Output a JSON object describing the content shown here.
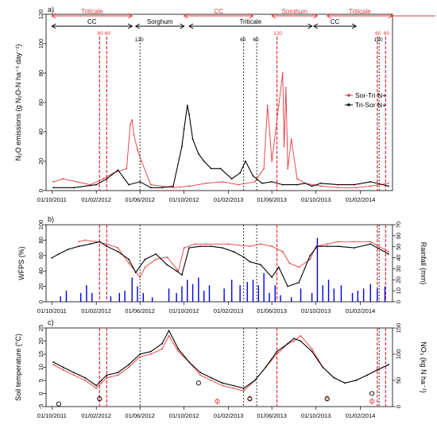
{
  "colors": {
    "sor_tri": "#e8373a",
    "tri_sor": "#000000",
    "rain": "#0000ee",
    "axis": "#000000"
  },
  "x_axis": {
    "ticks": [
      "01/10/2011",
      "01/02/2012",
      "01/06/2012",
      "01/10/2012",
      "01/02/2013",
      "01/06/2013",
      "01/10/2013",
      "01/02/2014"
    ],
    "range": [
      "2011-09-15",
      "2014-05-01"
    ]
  },
  "crops_sor_tri": [
    {
      "label": "Triticale",
      "start": "2011-10-01",
      "end": "2012-05-10"
    },
    {
      "label": "CC",
      "start": "2012-10-01",
      "end": "2013-04-10"
    },
    {
      "label": "Sorghum",
      "start": "2013-06-01",
      "end": "2013-10-05"
    },
    {
      "label": "Triticale",
      "start": "2013-11-01",
      "end": "2014-05-01"
    }
  ],
  "crops_tri_sor": [
    {
      "label": "CC",
      "start": "2011-10-01",
      "end": "2012-05-10"
    },
    {
      "label": "Sorghum",
      "start": "2012-05-20",
      "end": "2012-10-01"
    },
    {
      "label": "Triticale",
      "start": "2012-10-15",
      "end": "2013-09-20"
    },
    {
      "label": "CC",
      "start": "2013-09-25",
      "end": "2014-01-20"
    }
  ],
  "fert_sor_tri": [
    {
      "label": "60",
      "date": "2012-02-10"
    },
    {
      "label": "60",
      "date": "2012-03-01"
    },
    {
      "label": "120",
      "date": "2013-06-15"
    },
    {
      "label": "60",
      "date": "2014-03-20"
    },
    {
      "label": "60",
      "date": "2014-04-12"
    }
  ],
  "fert_tri_sor": [
    {
      "label": "120",
      "date": "2012-06-01"
    },
    {
      "label": "60",
      "date": "2013-03-15"
    },
    {
      "label": "60",
      "date": "2013-04-20"
    },
    {
      "label": "120",
      "date": "2014-03-25"
    }
  ],
  "chart_data": [
    {
      "type": "line",
      "panel": "a)",
      "ylabel": "N₂O emissions (g N₂O-N ha⁻¹ day⁻¹)",
      "ylim": [
        0,
        120
      ],
      "yticks": [
        0,
        20,
        40,
        60,
        80,
        100,
        120
      ],
      "legend": "right",
      "series": [
        {
          "name": "Sor-Tri N+",
          "x": [
            "2011-10-05",
            "2011-11-01",
            "2012-01-15",
            "2012-02-20",
            "2012-03-20",
            "2012-04-25",
            "2012-05-05",
            "2012-05-10",
            "2012-05-15",
            "2012-05-25",
            "2012-06-05",
            "2012-07-01",
            "2012-09-01",
            "2012-10-15",
            "2012-12-01",
            "2013-01-15",
            "2013-03-01",
            "2013-04-15",
            "2013-05-10",
            "2013-05-20",
            "2013-06-01",
            "2013-06-20",
            "2013-07-01",
            "2013-07-05",
            "2013-07-10",
            "2013-07-15",
            "2013-07-25",
            "2013-08-10",
            "2013-09-01",
            "2013-10-15",
            "2013-12-01",
            "2014-01-20",
            "2014-03-01",
            "2014-04-20"
          ],
          "values": [
            6,
            8,
            4,
            8,
            12,
            15,
            45,
            48,
            38,
            28,
            20,
            4,
            2,
            3,
            5,
            6,
            4,
            6,
            15,
            58,
            20,
            58,
            80,
            30,
            70,
            15,
            35,
            8,
            5,
            3,
            2,
            2,
            3,
            5
          ]
        },
        {
          "name": "Tri-Sor N+",
          "x": [
            "2011-10-05",
            "2011-12-01",
            "2012-02-01",
            "2012-03-01",
            "2012-04-01",
            "2012-05-01",
            "2012-06-01",
            "2012-07-01",
            "2012-08-01",
            "2012-09-01",
            "2012-09-25",
            "2012-10-01",
            "2012-10-10",
            "2012-10-15",
            "2012-10-25",
            "2012-11-10",
            "2012-11-25",
            "2012-12-15",
            "2013-01-10",
            "2013-02-10",
            "2013-03-05",
            "2013-03-20",
            "2013-04-10",
            "2013-05-05",
            "2013-06-01",
            "2013-07-01",
            "2013-08-10",
            "2013-09-01",
            "2013-09-20",
            "2013-10-15",
            "2013-12-01",
            "2014-01-15",
            "2014-03-01",
            "2014-04-20"
          ],
          "values": [
            2,
            2,
            4,
            8,
            14,
            4,
            6,
            2,
            2,
            3,
            30,
            42,
            58,
            52,
            35,
            25,
            20,
            15,
            15,
            8,
            12,
            20,
            10,
            5,
            6,
            4,
            4,
            5,
            3,
            5,
            4,
            4,
            6,
            3
          ]
        }
      ]
    },
    {
      "type": "line",
      "panel": "b)",
      "ylabel": "WFPS (%)",
      "y2label": "Rainfall (mm)",
      "ylim": [
        0,
        100
      ],
      "yticks": [
        0,
        20,
        40,
        60,
        80,
        100
      ],
      "y2lim": [
        0,
        70
      ],
      "y2ticks": [
        0,
        10,
        20,
        30,
        40,
        50,
        60,
        70
      ],
      "series": [
        {
          "name": "Sor-Tri N+",
          "x": [
            "2011-12-15",
            "2012-01-01",
            "2012-02-01",
            "2012-03-01",
            "2012-04-01",
            "2012-05-01",
            "2012-06-01",
            "2012-06-15",
            "2012-07-15",
            "2012-08-15",
            "2012-09-15",
            "2012-10-01",
            "2012-11-01",
            "2012-12-01",
            "2013-02-01",
            "2013-04-01",
            "2013-05-01",
            "2013-06-01",
            "2013-07-01",
            "2013-07-20",
            "2013-08-15",
            "2013-09-15",
            "2013-10-01",
            "2013-11-01",
            "2013-12-01",
            "2014-01-15",
            "2014-03-01",
            "2014-04-20"
          ],
          "values": [
            78,
            80,
            78,
            75,
            70,
            50,
            32,
            45,
            55,
            58,
            40,
            70,
            75,
            75,
            75,
            72,
            75,
            72,
            65,
            50,
            45,
            55,
            72,
            75,
            78,
            78,
            78,
            65
          ]
        },
        {
          "name": "Tri-Sor N+",
          "x": [
            "2011-10-01",
            "2011-10-20",
            "2011-11-15",
            "2011-12-15",
            "2012-01-15",
            "2012-02-10",
            "2012-03-01",
            "2012-04-01",
            "2012-05-01",
            "2012-05-20",
            "2012-06-15",
            "2012-07-15",
            "2012-08-15",
            "2012-09-10",
            "2012-09-25",
            "2012-10-15",
            "2012-11-15",
            "2012-12-15",
            "2013-01-15",
            "2013-02-15",
            "2013-03-15",
            "2013-04-01",
            "2013-05-01",
            "2013-06-01",
            "2013-06-20",
            "2013-07-15",
            "2013-08-15",
            "2013-09-15",
            "2013-10-05",
            "2013-11-01",
            "2013-12-01",
            "2014-01-15",
            "2014-03-01",
            "2014-04-20"
          ],
          "values": [
            57,
            62,
            68,
            72,
            75,
            78,
            72,
            65,
            55,
            38,
            55,
            62,
            48,
            40,
            35,
            70,
            72,
            72,
            70,
            65,
            58,
            52,
            48,
            32,
            45,
            20,
            25,
            60,
            72,
            72,
            72,
            70,
            75,
            62
          ]
        }
      ],
      "rainfall": {
        "name": "Rainfall",
        "x": [
          "2011-10-25",
          "2011-11-10",
          "2011-12-20",
          "2012-01-05",
          "2012-01-20",
          "2012-03-12",
          "2012-04-05",
          "2012-04-20",
          "2012-05-10",
          "2012-05-25",
          "2012-06-10",
          "2012-07-05",
          "2012-08-20",
          "2012-09-10",
          "2012-09-25",
          "2012-10-10",
          "2012-10-25",
          "2012-11-10",
          "2012-11-25",
          "2012-12-10",
          "2013-01-20",
          "2013-02-10",
          "2013-03-05",
          "2013-03-25",
          "2013-04-10",
          "2013-04-25",
          "2013-05-10",
          "2013-05-25",
          "2013-06-10",
          "2013-06-25",
          "2013-07-25",
          "2013-08-20",
          "2013-09-20",
          "2013-10-05",
          "2013-10-20",
          "2013-11-05",
          "2013-11-20",
          "2013-12-10",
          "2014-01-10",
          "2014-01-25",
          "2014-02-10",
          "2014-03-01",
          "2014-03-20",
          "2014-04-10"
        ],
        "values": [
          5,
          10,
          8,
          15,
          8,
          5,
          8,
          10,
          22,
          14,
          8,
          4,
          12,
          8,
          14,
          20,
          16,
          22,
          10,
          15,
          12,
          20,
          15,
          18,
          20,
          15,
          26,
          8,
          15,
          6,
          4,
          12,
          8,
          58,
          15,
          20,
          12,
          15,
          8,
          10,
          12,
          16,
          12,
          14
        ]
      }
    },
    {
      "type": "line",
      "panel": "c)",
      "ylabel": "Soil temperature (°C)",
      "y2label": "NO₃ (kg N ha⁻¹)",
      "ylim": [
        -5,
        25
      ],
      "yticks": [
        -5,
        0,
        5,
        10,
        15,
        20,
        25
      ],
      "y2lim": [
        0,
        150
      ],
      "y2ticks": [
        0,
        50,
        100,
        150
      ],
      "series": [
        {
          "name": "Sor-Tri N+",
          "x": [
            "2011-10-05",
            "2011-11-01",
            "2011-12-01",
            "2012-01-01",
            "2012-02-01",
            "2012-02-15",
            "2012-03-01",
            "2012-04-01",
            "2012-05-01",
            "2012-06-01",
            "2012-07-01",
            "2012-08-01",
            "2012-08-20",
            "2012-09-15",
            "2012-10-15",
            "2012-11-15",
            "2012-12-15",
            "2013-01-15",
            "2013-02-15",
            "2013-03-15",
            "2013-04-15",
            "2013-05-15",
            "2013-06-15",
            "2013-07-15",
            "2013-08-01",
            "2013-08-20",
            "2013-09-20",
            "2013-10-20",
            "2013-11-20",
            "2013-12-20",
            "2014-01-20",
            "2014-02-20",
            "2014-03-20",
            "2014-04-20"
          ],
          "values": [
            11,
            9,
            7,
            5,
            2,
            4,
            6,
            7,
            10,
            14,
            15,
            17,
            22,
            16,
            12,
            7,
            5,
            3,
            2,
            1,
            5,
            10,
            15,
            19,
            20,
            22,
            17,
            10,
            6,
            4,
            5,
            7,
            9,
            11
          ]
        },
        {
          "name": "Tri-Sor N+",
          "x": [
            "2011-10-05",
            "2011-11-01",
            "2011-12-01",
            "2012-01-01",
            "2012-02-01",
            "2012-02-15",
            "2012-03-01",
            "2012-04-01",
            "2012-05-01",
            "2012-06-01",
            "2012-07-01",
            "2012-08-01",
            "2012-08-20",
            "2012-09-15",
            "2012-10-15",
            "2012-11-15",
            "2012-12-15",
            "2013-01-15",
            "2013-02-15",
            "2013-03-15",
            "2013-04-15",
            "2013-05-15",
            "2013-06-15",
            "2013-07-15",
            "2013-08-01",
            "2013-08-20",
            "2013-09-20",
            "2013-10-20",
            "2013-11-20",
            "2013-12-20",
            "2014-01-20",
            "2014-02-20",
            "2014-03-20",
            "2014-04-20"
          ],
          "values": [
            12,
            10,
            8,
            6,
            3,
            5,
            7,
            8,
            11,
            15,
            16,
            19,
            24,
            17,
            12,
            8,
            6,
            4,
            3,
            2,
            5,
            10,
            16,
            19,
            21,
            20,
            16,
            10,
            6,
            4,
            5,
            7,
            9,
            11
          ]
        }
      ],
      "no3": {
        "sor_tri": {
          "name": "Sor-Tri N+",
          "x": [
            "2012-02-10",
            "2013-01-01",
            "2013-04-01",
            "2013-11-01",
            "2014-03-05"
          ],
          "values": [
            15,
            10,
            15,
            15,
            10
          ]
        },
        "tri_sor": {
          "name": "Tri-Sor N+",
          "x": [
            "2011-10-20",
            "2012-02-10",
            "2012-11-10",
            "2013-04-01",
            "2013-11-01",
            "2014-03-05"
          ],
          "values": [
            5,
            15,
            45,
            15,
            15,
            25
          ]
        }
      }
    }
  ]
}
